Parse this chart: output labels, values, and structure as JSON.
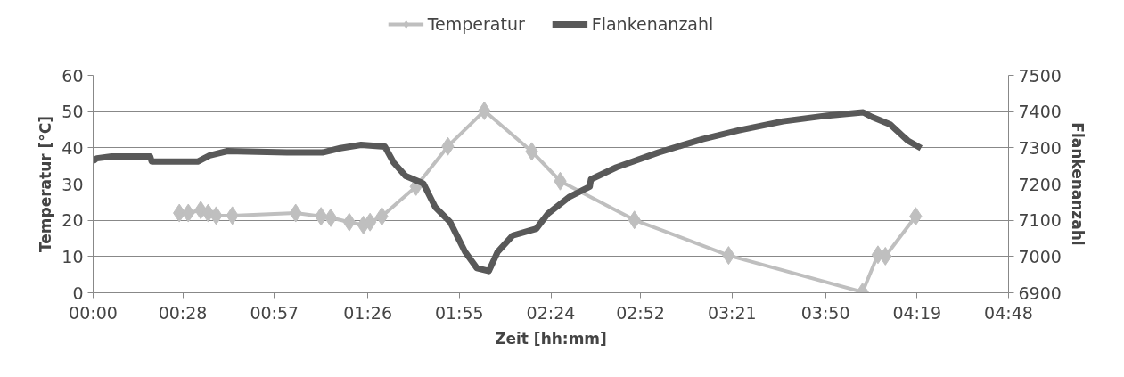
{
  "chart_data": {
    "type": "line",
    "xlabel": "Zeit [hh:mm]",
    "ylabel": "Temperatur [°C]",
    "y2label": "Flankenanzahl",
    "xlim": [
      0,
      4.8
    ],
    "xticks": [
      {
        "value": 0,
        "label": "00:00"
      },
      {
        "value": 0.47,
        "label": "00:28"
      },
      {
        "value": 0.95,
        "label": "00:57"
      },
      {
        "value": 1.44,
        "label": "01:26"
      },
      {
        "value": 1.92,
        "label": "01:55"
      },
      {
        "value": 2.4,
        "label": "02:24"
      },
      {
        "value": 2.87,
        "label": "02:52"
      },
      {
        "value": 3.35,
        "label": "03:21"
      },
      {
        "value": 3.84,
        "label": "03:50"
      },
      {
        "value": 4.32,
        "label": "04:19"
      },
      {
        "value": 4.8,
        "label": "04:48"
      }
    ],
    "ylim": [
      0,
      60
    ],
    "yticks": [
      0,
      10,
      20,
      30,
      40,
      50,
      60
    ],
    "y2lim": [
      6900,
      7500
    ],
    "y2ticks": [
      6900,
      7000,
      7100,
      7200,
      7300,
      7400,
      7500
    ],
    "grid": "y",
    "legend": "top",
    "series": [
      {
        "name": "Temperatur",
        "color": "#bfbfbf",
        "marker": "diamond",
        "x": [
          0.452,
          0.499,
          0.564,
          0.603,
          0.645,
          0.73,
          1.062,
          1.195,
          1.246,
          1.343,
          1.417,
          1.452,
          1.514,
          1.693,
          1.86,
          2.051,
          2.3,
          2.449,
          2.838,
          3.332,
          4.034,
          4.115,
          4.154,
          4.313
        ],
        "values": [
          22,
          22,
          22.8,
          22,
          21.3,
          21.3,
          22,
          21.1,
          20.7,
          19.5,
          18.7,
          19.5,
          21.1,
          29.3,
          40.4,
          50.2,
          39,
          30.8,
          20.1,
          10.3,
          0.2,
          10.5,
          10.1,
          21.1
        ]
      },
      {
        "name": "Flankenanzahl",
        "color": "#595959",
        "marker": "none",
        "axis": "y2",
        "x": [
          0,
          0.019,
          0.097,
          0.299,
          0.307,
          0.548,
          0.611,
          0.704,
          1.016,
          1.202,
          1.296,
          1.405,
          1.53,
          1.576,
          1.639,
          1.717,
          1.732,
          1.794,
          1.872,
          1.95,
          2.012,
          2.075,
          2.121,
          2.2,
          2.324,
          2.386,
          2.495,
          2.604,
          2.61,
          2.744,
          2.963,
          3.196,
          3.383,
          3.617,
          3.85,
          4.037,
          4.084,
          4.178,
          4.271,
          4.341
        ],
        "values": [
          7263,
          7271,
          7276,
          7276,
          7262,
          7262,
          7279,
          7291,
          7287,
          7287,
          7299,
          7308,
          7303,
          7259,
          7222,
          7205,
          7201,
          7136,
          7095,
          7013,
          6968,
          6960,
          7013,
          7058,
          7077,
          7119,
          7164,
          7193,
          7213,
          7246,
          7287,
          7324,
          7348,
          7373,
          7389,
          7398,
          7385,
          7365,
          7320,
          7299
        ]
      }
    ]
  }
}
